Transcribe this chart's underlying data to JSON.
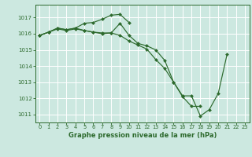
{
  "title": "Graphe pression niveau de la mer (hPa)",
  "bg_color": "#cce8e0",
  "grid_color": "#ffffff",
  "line_color": "#2d6a2d",
  "ylim": [
    1010.5,
    1017.8
  ],
  "xlim": [
    -0.5,
    23.5
  ],
  "yticks": [
    1011,
    1012,
    1013,
    1014,
    1015,
    1016,
    1017
  ],
  "xticks": [
    0,
    1,
    2,
    3,
    4,
    5,
    6,
    7,
    8,
    9,
    10,
    11,
    12,
    13,
    14,
    15,
    16,
    17,
    18,
    19,
    20,
    21,
    22,
    23
  ],
  "series": [
    {
      "x": [
        0,
        1,
        2,
        3,
        4,
        5,
        6,
        7,
        8,
        9,
        10,
        11,
        12,
        13,
        14,
        15,
        16,
        17,
        18,
        19,
        20,
        21
      ],
      "y": [
        1015.9,
        1016.1,
        1016.3,
        1016.2,
        1016.3,
        1016.2,
        1016.1,
        1016.0,
        1016.05,
        1015.9,
        1015.55,
        1015.3,
        1015.05,
        1014.4,
        1013.85,
        1013.0,
        1012.15,
        1012.15,
        1010.9,
        1011.3,
        1012.3,
        1014.75
      ]
    },
    {
      "x": [
        0,
        1,
        2,
        3,
        4,
        5,
        6,
        7,
        8,
        9,
        10
      ],
      "y": [
        1015.9,
        1016.1,
        1016.35,
        1016.25,
        1016.35,
        1016.65,
        1016.7,
        1016.9,
        1017.15,
        1017.2,
        1016.7
      ]
    },
    {
      "x": [
        0,
        1,
        2,
        3,
        4,
        5,
        6,
        7,
        8,
        9,
        10,
        11,
        12,
        13,
        14,
        15,
        16,
        17,
        18
      ],
      "y": [
        1015.9,
        1016.1,
        1016.35,
        1016.25,
        1016.35,
        1016.2,
        1016.1,
        1016.05,
        1016.05,
        1016.65,
        1015.9,
        1015.4,
        1015.25,
        1015.0,
        1014.35,
        1013.0,
        1012.1,
        1011.5,
        1011.5
      ]
    }
  ]
}
